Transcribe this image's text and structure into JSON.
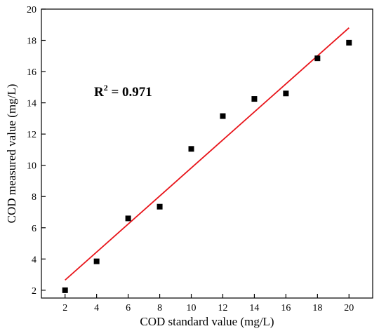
{
  "chart_data": {
    "type": "scatter",
    "xlabel": "COD standard value (mg/L)",
    "ylabel": "COD measured value (mg/L)",
    "xlim": [
      0.5,
      21.5
    ],
    "ylim": [
      1.5,
      20
    ],
    "xticks": [
      2,
      4,
      6,
      8,
      10,
      12,
      14,
      16,
      18,
      20
    ],
    "yticks": [
      2,
      4,
      6,
      8,
      10,
      12,
      14,
      16,
      18,
      20
    ],
    "grid": false,
    "series": [
      {
        "values": [
          {
            "x": 2,
            "y": 2.0
          },
          {
            "x": 4,
            "y": 3.85
          },
          {
            "x": 6,
            "y": 6.6
          },
          {
            "x": 8,
            "y": 7.35
          },
          {
            "x": 10,
            "y": 11.05
          },
          {
            "x": 12,
            "y": 13.15
          },
          {
            "x": 14,
            "y": 14.25
          },
          {
            "x": 16,
            "y": 14.6
          },
          {
            "x": 18,
            "y": 16.85
          },
          {
            "x": 20,
            "y": 17.85
          }
        ],
        "color": "#000000"
      }
    ],
    "fit_line": {
      "x": [
        2,
        20
      ],
      "y": [
        2.65,
        18.8
      ],
      "color": "#e8141a"
    },
    "annotation": {
      "base": "R",
      "superscript": "2",
      "value": " = 0.971"
    }
  }
}
